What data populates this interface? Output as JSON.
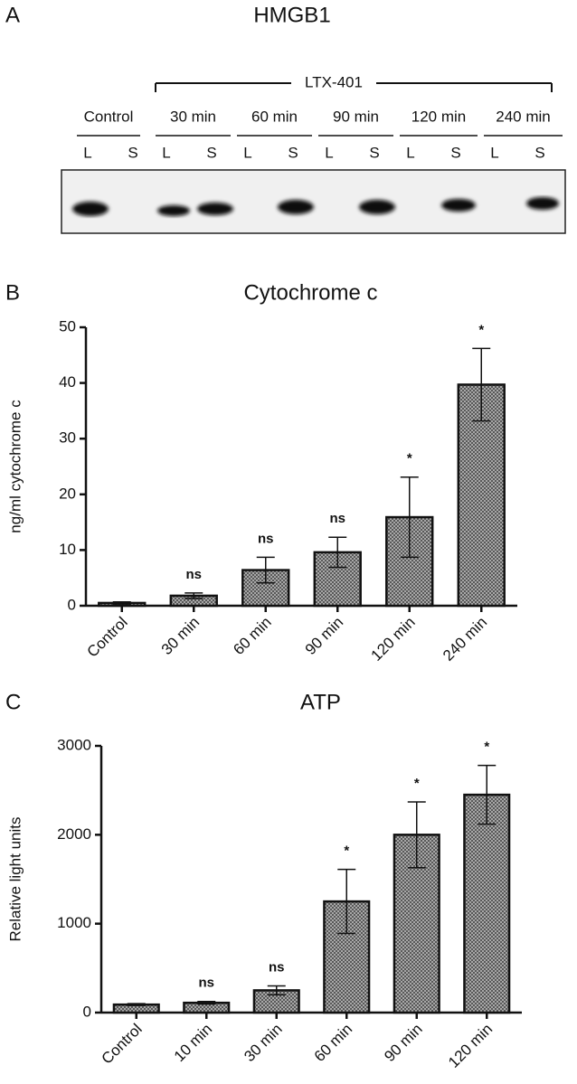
{
  "blot": {
    "panel": "A",
    "title": "HMGB1",
    "treatment": "LTX-401",
    "groups": [
      {
        "label": "Control",
        "lanes": [
          "L",
          "S"
        ]
      },
      {
        "label": "30 min",
        "lanes": [
          "L",
          "S"
        ]
      },
      {
        "label": "60 min",
        "lanes": [
          "L",
          "S"
        ]
      },
      {
        "label": "90 min",
        "lanes": [
          "L",
          "S"
        ]
      },
      {
        "label": "120 min",
        "lanes": [
          "L",
          "S"
        ]
      },
      {
        "label": "240 min",
        "lanes": [
          "L",
          "S"
        ]
      }
    ]
  },
  "chart_data": [
    {
      "type": "bar",
      "panel": "B",
      "title": "Cytochrome c",
      "y_label": "ng/ml cytochrome c",
      "categories": [
        "Control",
        "30 min",
        "60 min",
        "90 min",
        "120 min",
        "240 min"
      ],
      "values": [
        0.5,
        1.8,
        6.4,
        9.6,
        15.9,
        39.7
      ],
      "errors": [
        0.2,
        0.5,
        2.3,
        2.7,
        7.2,
        6.5
      ],
      "annotations": [
        null,
        "ns",
        "ns",
        "ns",
        "*",
        "*"
      ],
      "ylim": [
        0,
        50
      ],
      "yticks": [
        0,
        10,
        20,
        30,
        40,
        50
      ]
    },
    {
      "type": "bar",
      "panel": "C",
      "title": "ATP",
      "y_label": "Relative light units",
      "categories": [
        "Control",
        "10 min",
        "30 min",
        "60 min",
        "90 min",
        "120 min"
      ],
      "values": [
        90,
        110,
        250,
        1250,
        2000,
        2450
      ],
      "errors": [
        10,
        15,
        50,
        360,
        370,
        330
      ],
      "annotations": [
        null,
        "ns",
        "ns",
        "*",
        "*",
        "*"
      ],
      "ylim": [
        0,
        3000
      ],
      "yticks": [
        0,
        1000,
        2000,
        3000
      ]
    }
  ]
}
